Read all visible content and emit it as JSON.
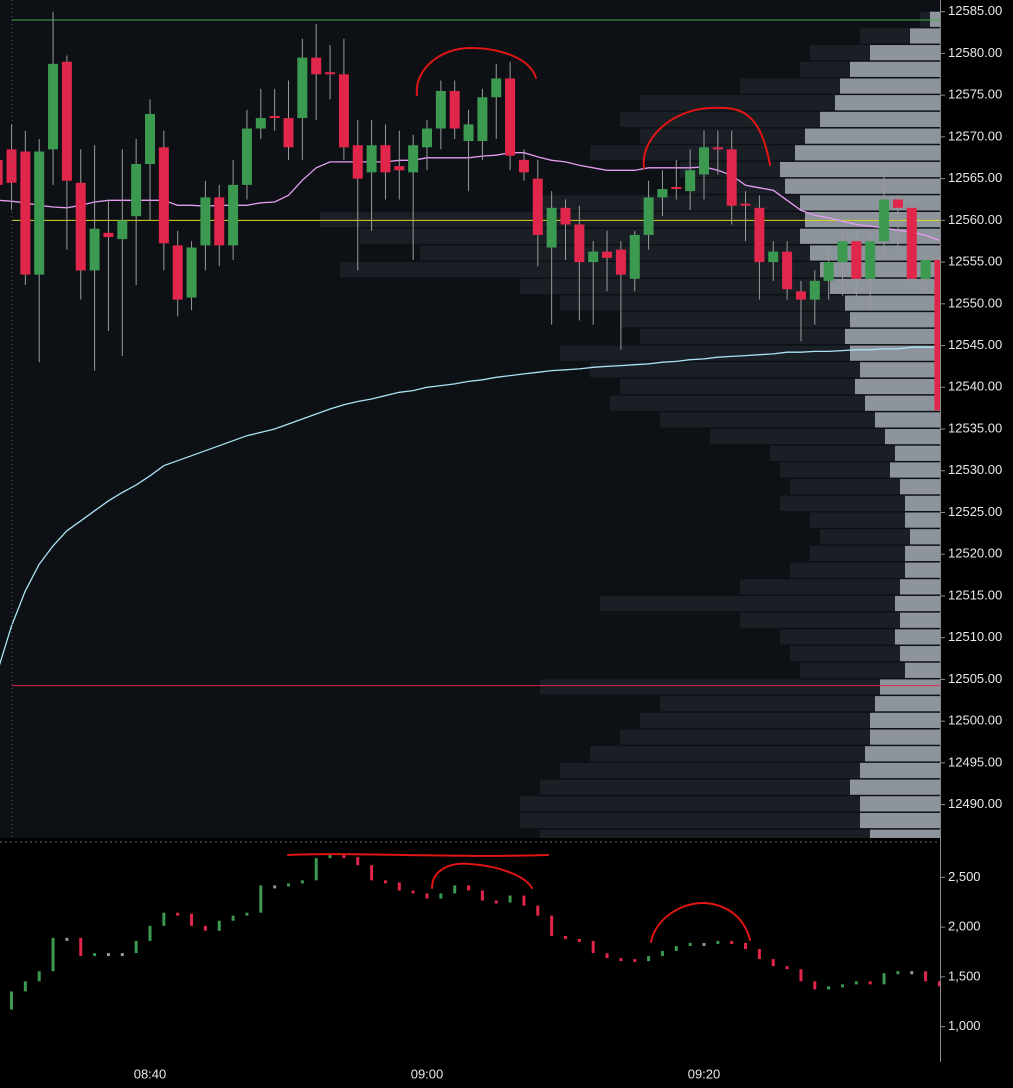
{
  "chart_data": [
    {
      "type": "candlestick",
      "categories": [
        null,
        null,
        null,
        null,
        null,
        null,
        null,
        null,
        null,
        null,
        null,
        "08:40",
        null,
        null,
        null,
        null,
        null,
        null,
        null,
        null,
        null,
        null,
        null,
        null,
        null,
        null,
        null,
        null,
        null,
        null,
        null,
        "09:00",
        null,
        null,
        null,
        null,
        null,
        null,
        null,
        null,
        null,
        null,
        null,
        null,
        null,
        null,
        null,
        null,
        null,
        null,
        null,
        "09:20",
        null,
        null,
        null,
        null,
        null,
        null,
        null,
        null,
        null,
        null,
        null,
        null,
        null,
        null,
        null,
        null,
        null
      ],
      "open": [
        12567.25,
        12568.5,
        12568.25,
        12553.5,
        12568.5,
        12579,
        12564.5,
        12554,
        12558.5,
        12557.75,
        12560.5,
        12566.75,
        12568.75,
        12557,
        12550.75,
        12557,
        12562.75,
        12557,
        12564.25,
        12571,
        12572.5,
        12572.25,
        12572.25,
        12579.5,
        12577.75,
        12577.5,
        12569,
        12565.75,
        12569,
        12566.5,
        12565.75,
        12568.75,
        12571,
        12575.5,
        12569.5,
        12569.5,
        12574.75,
        12577,
        12567.25,
        12565,
        12556.75,
        12561.5,
        12559.5,
        12555,
        12556.25,
        12556.5,
        12553,
        12558.25,
        12562.75,
        12564,
        12563.5,
        12565.5,
        12568.75,
        12568.5,
        12562,
        12561.5,
        12555,
        12556.25,
        12551.5,
        12550.5,
        12552.75,
        12555,
        12557.5,
        12553,
        12557.5,
        12562.5,
        12561.5,
        12553,
        12555.25
      ],
      "high": [
        12569.75,
        12571.5,
        12570.75,
        12569.75,
        12585,
        12579.75,
        12568.5,
        12569,
        12562.5,
        12568.5,
        12569.75,
        12574.5,
        12570.75,
        12558.75,
        12557.5,
        12564.75,
        12564.25,
        12567.25,
        12573.25,
        12575.75,
        12575.75,
        12576.75,
        12581.75,
        12583.5,
        12581,
        12581.75,
        12572,
        12572,
        12571.5,
        12570.75,
        12570.25,
        12572,
        12576.75,
        12576.75,
        12573.25,
        12575.75,
        12578.75,
        12579,
        12568.5,
        12567.25,
        12563.5,
        12562.5,
        12561.75,
        12557.5,
        12558.75,
        12557.5,
        12558.75,
        12564.75,
        12566,
        12567.25,
        12568.5,
        12570.75,
        12570.75,
        12570.75,
        12563.5,
        12563,
        12557.5,
        12557.5,
        12552.75,
        12554,
        12556.5,
        12558.75,
        12558.75,
        12558.75,
        12565.5,
        12563,
        12562.5,
        12555.75,
        12555.75
      ],
      "low": [
        12562.5,
        12561.25,
        12552.25,
        12543,
        12564.25,
        12556.5,
        12550.5,
        12542,
        12546.75,
        12543.75,
        12552.25,
        12560,
        12554,
        12548.5,
        12549.25,
        12554,
        12554.5,
        12555.25,
        12562.5,
        12569.75,
        12570.75,
        12567.25,
        12567.25,
        12572,
        12574.5,
        12567.25,
        12554,
        12558.75,
        12562.5,
        12562.5,
        12555.25,
        12566,
        12568.5,
        12569.75,
        12563.5,
        12567.25,
        12569.75,
        12566,
        12564.75,
        12554.5,
        12547.5,
        12555.25,
        12548,
        12547.5,
        12551.5,
        12544.5,
        12551.5,
        12556.5,
        12560.5,
        12562.5,
        12561.25,
        12562.5,
        12565.5,
        12559.5,
        12557.5,
        12550.5,
        12552.75,
        12550.5,
        12545.5,
        12547.5,
        12550.5,
        12551,
        12550.5,
        12549.25,
        12555.75,
        12556.5,
        12552.25,
        12551.5,
        12537.25
      ],
      "close": [
        12564.25,
        12564.5,
        12553.5,
        12568.25,
        12578.75,
        12564.75,
        12554,
        12559,
        12558,
        12560,
        12566.75,
        12572.75,
        12557.25,
        12550.5,
        12556.75,
        12562.75,
        12557,
        12564.25,
        12571,
        12572.25,
        12572.25,
        12568.75,
        12579.5,
        12577.5,
        12577.5,
        12568.75,
        12565,
        12569,
        12565.75,
        12566,
        12569,
        12571,
        12575.5,
        12571,
        12571.5,
        12574.75,
        12577,
        12567.75,
        12565.75,
        12558.25,
        12561.5,
        12559.5,
        12555,
        12556.25,
        12555.5,
        12553.5,
        12558.25,
        12562.75,
        12563.75,
        12563.75,
        12566,
        12568.75,
        12568.5,
        12561.75,
        12561.75,
        12555,
        12556.25,
        12551.75,
        12550.5,
        12552.75,
        12555,
        12557.5,
        12553,
        12557.5,
        12562.5,
        12561.5,
        12553,
        12555.25,
        12537.25
      ],
      "up_color": "#3c9a50",
      "down_color": "#e0264a",
      "ylim": [
        12486,
        12586.4
      ],
      "yticks": [
        {
          "value": 12585,
          "label": "12585.00"
        },
        {
          "value": 12580,
          "label": "12580.00"
        },
        {
          "value": 12575,
          "label": "12575.00"
        },
        {
          "value": 12570,
          "label": "12570.00"
        },
        {
          "value": 12565,
          "label": "12565.00"
        },
        {
          "value": 12560,
          "label": "12560.00"
        },
        {
          "value": 12555,
          "label": "12555.00"
        },
        {
          "value": 12550,
          "label": "12550.00"
        },
        {
          "value": 12545,
          "label": "12545.00"
        },
        {
          "value": 12540,
          "label": "12540.00"
        },
        {
          "value": 12535,
          "label": "12535.00"
        },
        {
          "value": 12530,
          "label": "12530.00"
        },
        {
          "value": 12525,
          "label": "12525.00"
        },
        {
          "value": 12520,
          "label": "12520.00"
        },
        {
          "value": 12515,
          "label": "12515.00"
        },
        {
          "value": 12510,
          "label": "12510.00"
        },
        {
          "value": 12505,
          "label": "12505.00"
        },
        {
          "value": 12500,
          "label": "12500.00"
        },
        {
          "value": 12495,
          "label": "12495.00"
        },
        {
          "value": 12490,
          "label": "12490.00"
        }
      ],
      "lines": [
        {
          "color": "#e49cf0",
          "values": [
            12562.4,
            12562.3,
            12562.1,
            12561.8,
            12561.6,
            12561.5,
            12561.8,
            12562.2,
            12562.4,
            12562.4,
            12562.4,
            12562.4,
            12562.4,
            12561.8,
            12561.8,
            12561.7,
            12561.8,
            12561.8,
            12561.8,
            12562.1,
            12562.2,
            12563,
            12564.8,
            12566.3,
            12567,
            12567,
            12567,
            12567,
            12567,
            12567.2,
            12567.2,
            12567.5,
            12567.5,
            12567.5,
            12567.5,
            12567.7,
            12567.8,
            12568.1,
            12568.1,
            12567.6,
            12567.2,
            12567,
            12566.6,
            12566.3,
            12566,
            12566,
            12566,
            12566.3,
            12566.3,
            12566.3,
            12566.3,
            12566.4,
            12566,
            12565.4,
            12564.2,
            12563.9,
            12563.6,
            12562.4,
            12561.2,
            12560.6,
            12560.3,
            12559.9,
            12559.5,
            12559.3,
            12559.1,
            12558.8,
            12558.6,
            12558.2,
            12557.6
          ]
        },
        {
          "color": "#a9e3f4",
          "values": [
            12506,
            12511.4,
            12515.6,
            12518.8,
            12521,
            12522.8,
            12524,
            12525.2,
            12526.4,
            12527.4,
            12528.3,
            12529.4,
            12530.6,
            12531.2,
            12531.8,
            12532.4,
            12533,
            12533.6,
            12534.2,
            12534.6,
            12535,
            12535.6,
            12536.2,
            12536.8,
            12537.4,
            12537.9,
            12538.3,
            12538.6,
            12539,
            12539.4,
            12539.6,
            12540,
            12540.2,
            12540.4,
            12540.7,
            12540.9,
            12541.2,
            12541.4,
            12541.6,
            12541.8,
            12542,
            12542.1,
            12542.2,
            12542.4,
            12542.5,
            12542.6,
            12542.7,
            12542.8,
            12543,
            12543.1,
            12543.3,
            12543.4,
            12543.6,
            12543.7,
            12543.8,
            12543.9,
            12544,
            12544.2,
            12544.2,
            12544.3,
            12544.3,
            12544.4,
            12544.5,
            12544.5,
            12544.6,
            12544.6,
            12544.8,
            12544.8,
            12544.8
          ]
        }
      ],
      "levels": [
        {
          "value": 12584,
          "color": "#3fae4f"
        },
        {
          "value": 12560,
          "color": "#d8d820"
        },
        {
          "value": 12504.25,
          "color": "#e0264a"
        }
      ],
      "profile_prices": [
        12486,
        12488,
        12490,
        12492,
        12494,
        12496,
        12498,
        12500,
        12502,
        12504,
        12506,
        12508,
        12510,
        12512,
        12514,
        12516,
        12518,
        12520,
        12522,
        12524,
        12526,
        12528,
        12530,
        12532,
        12534,
        12536,
        12538,
        12540,
        12542,
        12544,
        12546,
        12548,
        12550,
        12552,
        12554,
        12556,
        12558,
        12560,
        12562,
        12564,
        12566,
        12568,
        12570,
        12572,
        12574,
        12576,
        12578,
        12580,
        12582,
        12584
      ],
      "profiles": [
        {
          "color": "#1a1f26",
          "volumes": [
            400,
            420,
            420,
            400,
            380,
            350,
            320,
            300,
            280,
            400,
            140,
            150,
            160,
            200,
            340,
            200,
            150,
            130,
            120,
            130,
            160,
            150,
            160,
            170,
            230,
            280,
            330,
            320,
            350,
            380,
            300,
            320,
            380,
            420,
            600,
            520,
            580,
            620,
            400,
            250,
            260,
            350,
            300,
            320,
            300,
            200,
            140,
            130,
            80,
            20
          ]
        },
        {
          "color": "#8e949b",
          "volumes": [
            70,
            80,
            80,
            90,
            80,
            75,
            70,
            70,
            65,
            60,
            35,
            40,
            45,
            40,
            45,
            40,
            35,
            35,
            30,
            35,
            35,
            40,
            50,
            45,
            55,
            65,
            75,
            85,
            80,
            90,
            95,
            90,
            95,
            110,
            120,
            130,
            140,
            135,
            140,
            155,
            160,
            145,
            135,
            120,
            105,
            100,
            90,
            70,
            30,
            10
          ]
        }
      ]
    },
    {
      "type": "step_bar",
      "values": [
        1172,
        1354,
        1456,
        1557,
        1892,
        1892,
        1709,
        1739,
        1739,
        1739,
        1861,
        2013,
        2145,
        2135,
        2013,
        1963,
        2064,
        2115,
        2145,
        2419,
        2419,
        2439,
        2470,
        2693,
        2723,
        2703,
        2622,
        2470,
        2449,
        2368,
        2338,
        2287,
        2338,
        2419,
        2368,
        2267,
        2246,
        2317,
        2216,
        2115,
        1912,
        1881,
        1861,
        1739,
        1689,
        1679,
        1658,
        1709,
        1760,
        1810,
        1841,
        1841,
        1861,
        1841,
        1780,
        1679,
        1608,
        1577,
        1456,
        1374,
        1405,
        1425,
        1456,
        1425,
        1537,
        1557,
        1557,
        1456,
        1405
      ],
      "up_color": "#3c9a50",
      "down_color": "#e0264a",
      "ylim": [
        645,
        2825
      ],
      "yticks": [
        {
          "value": 1000,
          "label": "1,000"
        },
        {
          "value": 1500,
          "label": "1,500"
        },
        {
          "value": 2000,
          "label": "2,000"
        },
        {
          "value": 2500,
          "label": "2,500"
        }
      ]
    }
  ]
}
